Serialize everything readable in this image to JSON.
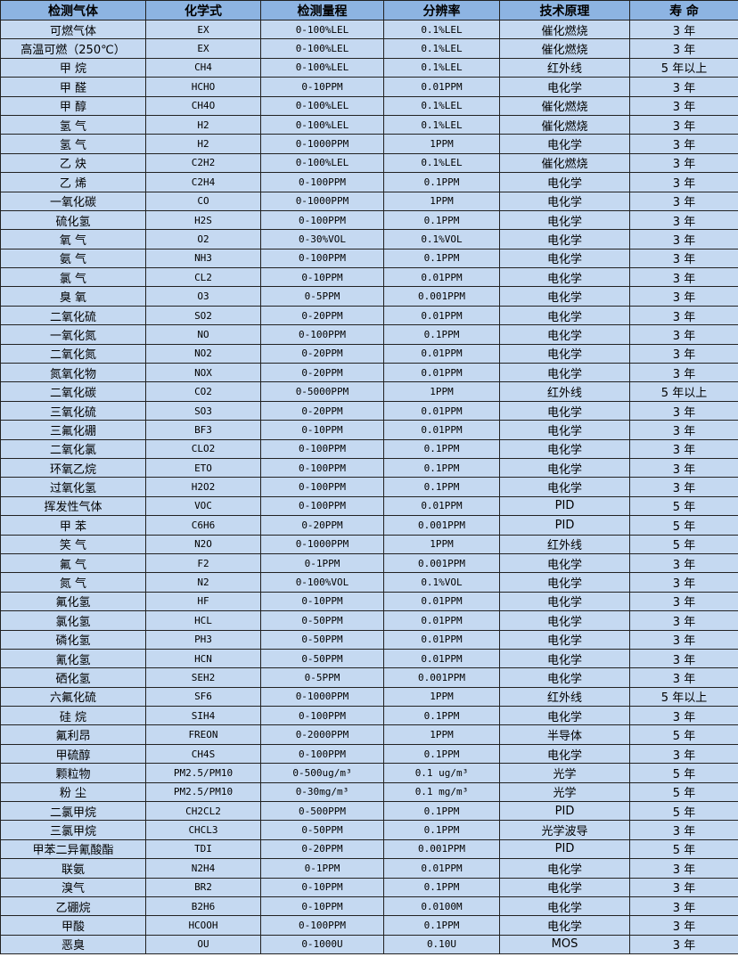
{
  "headers": [
    "检测气体",
    "化学式",
    "检测量程",
    "分辨率",
    "技术原理",
    "寿 命"
  ],
  "rows": [
    [
      "可燃气体",
      "EX",
      "0-100%LEL",
      "0.1%LEL",
      "催化燃烧",
      "3 年"
    ],
    [
      "高温可燃（250℃）",
      "EX",
      "0-100%LEL",
      "0.1%LEL",
      "催化燃烧",
      "3 年"
    ],
    [
      "甲 烷",
      "CH4",
      "0-100%LEL",
      "0.1%LEL",
      "红外线",
      "5 年以上"
    ],
    [
      "甲 醛",
      "HCHO",
      "0-10PPM",
      "0.01PPM",
      "电化学",
      "3 年"
    ],
    [
      "甲 醇",
      "CH4O",
      "0-100%LEL",
      "0.1%LEL",
      "催化燃烧",
      "3 年"
    ],
    [
      "氢 气",
      "H2",
      "0-100%LEL",
      "0.1%LEL",
      "催化燃烧",
      "3 年"
    ],
    [
      "氢 气",
      "H2",
      "0-1000PPM",
      "1PPM",
      "电化学",
      "3 年"
    ],
    [
      "乙 炔",
      "C2H2",
      "0-100%LEL",
      "0.1%LEL",
      "催化燃烧",
      "3 年"
    ],
    [
      "乙 烯",
      "C2H4",
      "0-100PPM",
      "0.1PPM",
      "电化学",
      "3 年"
    ],
    [
      "一氧化碳",
      "CO",
      "0-1000PPM",
      "1PPM",
      "电化学",
      "3 年"
    ],
    [
      "硫化氢",
      "H2S",
      "0-100PPM",
      "0.1PPM",
      "电化学",
      "3 年"
    ],
    [
      "氧 气",
      "O2",
      "0-30%VOL",
      "0.1%VOL",
      "电化学",
      "3 年"
    ],
    [
      "氨 气",
      "NH3",
      "0-100PPM",
      "0.1PPM",
      "电化学",
      "3 年"
    ],
    [
      "氯 气",
      "CL2",
      "0-10PPM",
      "0.01PPM",
      "电化学",
      "3 年"
    ],
    [
      "臭 氧",
      "O3",
      "0-5PPM",
      "0.001PPM",
      "电化学",
      "3 年"
    ],
    [
      "二氧化硫",
      "SO2",
      "0-20PPM",
      "0.01PPM",
      "电化学",
      "3 年"
    ],
    [
      "一氧化氮",
      "NO",
      "0-100PPM",
      "0.1PPM",
      "电化学",
      "3 年"
    ],
    [
      "二氧化氮",
      "NO2",
      "0-20PPM",
      "0.01PPM",
      "电化学",
      "3 年"
    ],
    [
      "氮氧化物",
      "NOX",
      "0-20PPM",
      "0.01PPM",
      "电化学",
      "3 年"
    ],
    [
      "二氧化碳",
      "CO2",
      "0-5000PPM",
      "1PPM",
      "红外线",
      "5 年以上"
    ],
    [
      "三氧化硫",
      "SO3",
      "0-20PPM",
      "0.01PPM",
      "电化学",
      "3 年"
    ],
    [
      "三氟化硼",
      "BF3",
      "0-10PPM",
      "0.01PPM",
      "电化学",
      "3 年"
    ],
    [
      "二氧化氯",
      "CLO2",
      "0-100PPM",
      "0.1PPM",
      "电化学",
      "3 年"
    ],
    [
      "环氧乙烷",
      "ETO",
      "0-100PPM",
      "0.1PPM",
      "电化学",
      "3 年"
    ],
    [
      "过氧化氢",
      "H2O2",
      "0-100PPM",
      "0.1PPM",
      "电化学",
      "3 年"
    ],
    [
      "挥发性气体",
      "VOC",
      "0-100PPM",
      "0.01PPM",
      "PID",
      "5 年"
    ],
    [
      "甲 苯",
      "C6H6",
      "0-20PPM",
      "0.001PPM",
      "PID",
      "5 年"
    ],
    [
      "笑 气",
      "N2O",
      "0-1000PPM",
      "1PPM",
      "红外线",
      "5 年"
    ],
    [
      "氟 气",
      "F2",
      "0-1PPM",
      "0.001PPM",
      "电化学",
      "3 年"
    ],
    [
      "氮 气",
      "N2",
      "0-100%VOL",
      "0.1%VOL",
      "电化学",
      "3 年"
    ],
    [
      "氟化氢",
      "HF",
      "0-10PPM",
      "0.01PPM",
      "电化学",
      "3 年"
    ],
    [
      "氯化氢",
      "HCL",
      "0-50PPM",
      "0.01PPM",
      "电化学",
      "3 年"
    ],
    [
      "磷化氢",
      "PH3",
      "0-50PPM",
      "0.01PPM",
      "电化学",
      "3 年"
    ],
    [
      "氰化氢",
      "HCN",
      "0-50PPM",
      "0.01PPM",
      "电化学",
      "3 年"
    ],
    [
      "硒化氢",
      "SEH2",
      "0-5PPM",
      "0.001PPM",
      "电化学",
      "3 年"
    ],
    [
      "六氟化硫",
      "SF6",
      "0-1000PPM",
      "1PPM",
      "红外线",
      "5 年以上"
    ],
    [
      "硅 烷",
      "SIH4",
      "0-100PPM",
      "0.1PPM",
      "电化学",
      "3 年"
    ],
    [
      "氟利昂",
      "FREON",
      "0-2000PPM",
      "1PPM",
      "半导体",
      "5 年"
    ],
    [
      "甲硫醇",
      "CH4S",
      "0-100PPM",
      "0.1PPM",
      "电化学",
      "3 年"
    ],
    [
      "颗粒物",
      "PM2.5/PM10",
      "0-500ug/m³",
      "0.1 ug/m³",
      "光学",
      "5 年"
    ],
    [
      "粉 尘",
      "PM2.5/PM10",
      "0-30mg/m³",
      "0.1 mg/m³",
      "光学",
      "5 年"
    ],
    [
      "二氯甲烷",
      "CH2CL2",
      "0-500PPM",
      "0.1PPM",
      "PID",
      "5 年"
    ],
    [
      "三氯甲烷",
      "CHCL3",
      "0-50PPM",
      "0.1PPM",
      "光学波导",
      "3 年"
    ],
    [
      "甲苯二异氰酸酯",
      "TDI",
      "0-20PPM",
      "0.001PPM",
      "PID",
      "5 年"
    ],
    [
      "联氨",
      "N2H4",
      "0-1PPM",
      "0.01PPM",
      "电化学",
      "3 年"
    ],
    [
      "溴气",
      "BR2",
      "0-10PPM",
      "0.1PPM",
      "电化学",
      "3 年"
    ],
    [
      "乙硼烷",
      "B2H6",
      "0-10PPM",
      "0.0100M",
      "电化学",
      "3 年"
    ],
    [
      "甲酸",
      "HCOOH",
      "0-100PPM",
      "0.1PPM",
      "电化学",
      "3 年"
    ],
    [
      "恶臭",
      "OU",
      "0-1000U",
      "0.10U",
      "MOS",
      "3 年"
    ]
  ]
}
